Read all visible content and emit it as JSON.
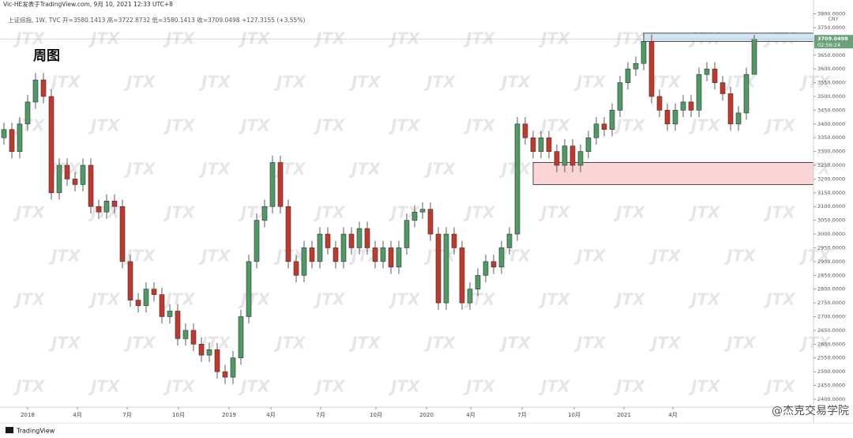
{
  "chart_data": {
    "type": "candlestick",
    "author": "Vic-HE发表于TradingView.com, 9月 10, 2021 12:33 UTC+8",
    "header": "上证综指, 1W, TVC  开=3580.1413  高=3722.8732  低=3580.1413  收=3709.0498  +127.3155 (+3.55%)",
    "title": "周图",
    "currency": "CNY",
    "last_price_label": "3709.0498",
    "countdown": "02:56:24",
    "watermark": "JTX",
    "brand": "TradingView",
    "signature": "@杰克交易学院",
    "up_color": "#4f9a65",
    "down_color": "#c0392b",
    "open": [
      3350,
      3380,
      3300,
      3400,
      3480,
      3560,
      3500,
      3150,
      3250,
      3200,
      3180,
      3250,
      3100,
      3080,
      3120,
      3100,
      2900,
      2760,
      2740,
      2800,
      2780,
      2700,
      2720,
      2620,
      2650,
      2600,
      2560,
      2580,
      2500,
      2480,
      2550,
      2700,
      2900,
      3050,
      3100,
      3260,
      3100,
      2900,
      2850,
      2950,
      2900,
      3000,
      2950,
      2900,
      3000,
      2950,
      3020,
      2950,
      2900,
      2950,
      2880,
      2950,
      3050,
      3080,
      3090,
      3000,
      2750,
      3000,
      2950,
      2750,
      2800,
      2850,
      2900,
      2880,
      2950,
      3000,
      3400,
      3350,
      3300,
      3350,
      3300,
      3250,
      3320,
      3250,
      3300,
      3350,
      3400,
      3380,
      3450,
      3550,
      3600,
      3620,
      3700,
      3500,
      3450,
      3400,
      3450,
      3480,
      3450,
      3580,
      3600,
      3550,
      3510,
      3400,
      3440,
      3580.1413
    ],
    "high": [
      3405,
      3405,
      3425,
      3505,
      3585,
      3585,
      3525,
      3275,
      3275,
      3225,
      3275,
      3275,
      3125,
      3145,
      3145,
      3125,
      2925,
      2785,
      2825,
      2825,
      2805,
      2745,
      2745,
      2675,
      2675,
      2625,
      2605,
      2605,
      2525,
      2575,
      2725,
      2925,
      3075,
      3125,
      3285,
      3285,
      3125,
      2925,
      2975,
      2975,
      3025,
      3025,
      2975,
      3025,
      3025,
      3045,
      3045,
      2975,
      2975,
      2975,
      2975,
      3075,
      3105,
      3115,
      3115,
      3025,
      3025,
      3025,
      2975,
      2825,
      2875,
      2925,
      2925,
      2975,
      3025,
      3425,
      3425,
      3375,
      3375,
      3375,
      3325,
      3345,
      3345,
      3325,
      3375,
      3425,
      3425,
      3475,
      3575,
      3625,
      3645,
      3725,
      3725,
      3525,
      3475,
      3475,
      3505,
      3505,
      3605,
      3625,
      3625,
      3575,
      3535,
      3465,
      3605,
      3722.8732
    ],
    "low": [
      3325,
      3275,
      3275,
      3375,
      3455,
      3475,
      3125,
      3125,
      3175,
      3155,
      3155,
      3075,
      3055,
      3055,
      3075,
      2875,
      2735,
      2715,
      2715,
      2755,
      2675,
      2675,
      2595,
      2595,
      2575,
      2535,
      2535,
      2475,
      2455,
      2455,
      2525,
      2675,
      2875,
      3025,
      3075,
      3075,
      2875,
      2825,
      2825,
      2875,
      2875,
      2925,
      2875,
      2875,
      2925,
      2925,
      2925,
      2875,
      2875,
      2855,
      2855,
      2925,
      3025,
      3055,
      2975,
      2725,
      2725,
      2925,
      2725,
      2725,
      2775,
      2825,
      2855,
      2855,
      2925,
      2975,
      3325,
      3275,
      3275,
      3275,
      3225,
      3225,
      3225,
      3225,
      3275,
      3325,
      3355,
      3355,
      3425,
      3525,
      3575,
      3595,
      3475,
      3425,
      3375,
      3375,
      3425,
      3425,
      3425,
      3555,
      3525,
      3485,
      3375,
      3375,
      3415,
      3580.1413
    ],
    "close": [
      3380,
      3300,
      3400,
      3480,
      3560,
      3500,
      3150,
      3250,
      3200,
      3180,
      3250,
      3100,
      3080,
      3120,
      3100,
      2900,
      2760,
      2740,
      2800,
      2780,
      2700,
      2720,
      2620,
      2650,
      2600,
      2560,
      2580,
      2500,
      2480,
      2550,
      2700,
      2900,
      3050,
      3100,
      3260,
      3100,
      2900,
      2850,
      2950,
      2900,
      3000,
      2950,
      2900,
      3000,
      2950,
      3020,
      2950,
      2900,
      2950,
      2880,
      2950,
      3050,
      3080,
      3090,
      3000,
      2750,
      3000,
      2950,
      2750,
      2800,
      2850,
      2900,
      2880,
      2950,
      3000,
      3400,
      3350,
      3300,
      3350,
      3300,
      3250,
      3320,
      3250,
      3300,
      3350,
      3400,
      3380,
      3450,
      3550,
      3600,
      3620,
      3700,
      3500,
      3450,
      3400,
      3450,
      3480,
      3450,
      3580,
      3600,
      3550,
      3510,
      3400,
      3440,
      3580,
      3709.0498
    ],
    "zones": [
      {
        "start": 81,
        "low": 3700,
        "high": 3730,
        "color": "#d6e4f7"
      },
      {
        "start": 67,
        "low": 3180,
        "high": 3260,
        "color": "#fbd5d5"
      }
    ],
    "xlim": [
      -0.5,
      102.5
    ],
    "xticks": [
      {
        "value": 3,
        "label": "2018"
      },
      {
        "value": 9.3,
        "label": "4月"
      },
      {
        "value": 15.6,
        "label": "7月"
      },
      {
        "value": 22.1,
        "label": "10月"
      },
      {
        "value": 28.5,
        "label": "2019"
      },
      {
        "value": 33.8,
        "label": "4月"
      },
      {
        "value": 40.1,
        "label": "7月"
      },
      {
        "value": 47.1,
        "label": "10月"
      },
      {
        "value": 53.5,
        "label": "2020"
      },
      {
        "value": 59.1,
        "label": "4月"
      },
      {
        "value": 65.6,
        "label": "7月"
      },
      {
        "value": 72.2,
        "label": "10月"
      },
      {
        "value": 78.5,
        "label": "2021"
      },
      {
        "value": 84.7,
        "label": "4月"
      }
    ],
    "ylim": [
      2371,
      3816
    ],
    "yticks": [
      {
        "value": 2400,
        "label": "2400.0000"
      },
      {
        "value": 2450,
        "label": "2450.0000"
      },
      {
        "value": 2500,
        "label": "2500.0000"
      },
      {
        "value": 2550,
        "label": "2550.0000"
      },
      {
        "value": 2600,
        "label": "2600.0000"
      },
      {
        "value": 2650,
        "label": "2650.0000"
      },
      {
        "value": 2700,
        "label": "2700.0000"
      },
      {
        "value": 2750,
        "label": "2750.0000"
      },
      {
        "value": 2800,
        "label": "2800.0000"
      },
      {
        "value": 2850,
        "label": "2850.0000"
      },
      {
        "value": 2900,
        "label": "2900.0000"
      },
      {
        "value": 2950,
        "label": "2950.0000"
      },
      {
        "value": 3000,
        "label": "3000.0000"
      },
      {
        "value": 3050,
        "label": "3050.0000"
      },
      {
        "value": 3100,
        "label": "3100.0000"
      },
      {
        "value": 3150,
        "label": "3150.0000"
      },
      {
        "value": 3200,
        "label": "3200.0000"
      },
      {
        "value": 3250,
        "label": "3250.0000"
      },
      {
        "value": 3300,
        "label": "3300.0000"
      },
      {
        "value": 3350,
        "label": "3350.0000"
      },
      {
        "value": 3400,
        "label": "3400.0000"
      },
      {
        "value": 3450,
        "label": "3450.0000"
      },
      {
        "value": 3500,
        "label": "3500.0000"
      },
      {
        "value": 3550,
        "label": "3550.0000"
      },
      {
        "value": 3600,
        "label": "3600.0000"
      },
      {
        "value": 3650,
        "label": "3650.0000"
      },
      {
        "value": 3700,
        "label": "3700.0000"
      },
      {
        "value": 3750,
        "label": "3750.0000"
      },
      {
        "value": 3800,
        "label": "3800.0000"
      }
    ],
    "grid": false
  }
}
